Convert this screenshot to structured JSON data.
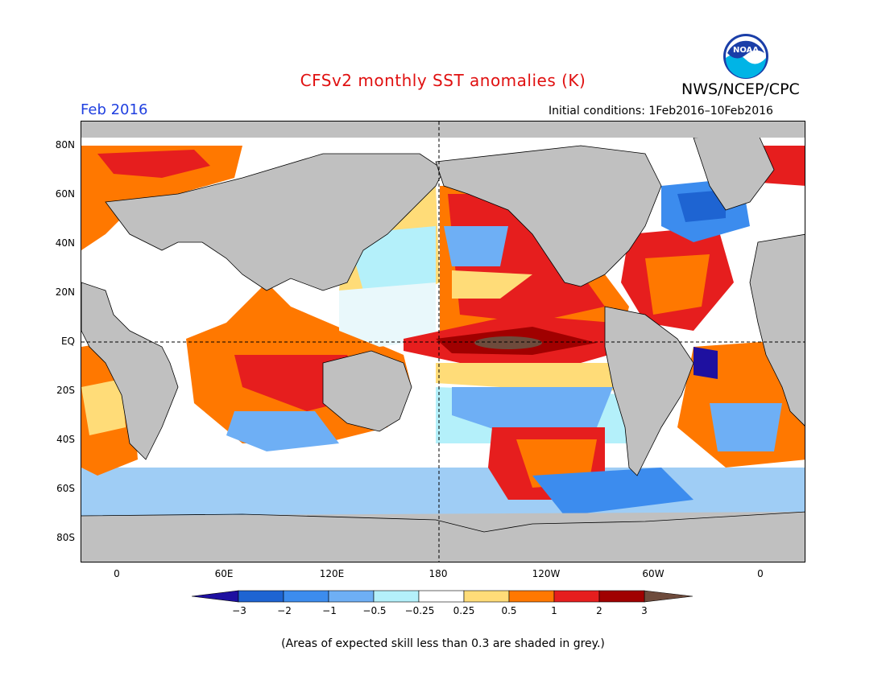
{
  "header": {
    "title": "CFSv2 monthly SST anomalies (K)",
    "organization": "NWS/NCEP/CPC",
    "period": "Feb 2016",
    "initial_conditions": "Initial conditions: 1Feb2016–10Feb2016",
    "logo_text": "NOAA"
  },
  "map": {
    "lat_labels": [
      "80N",
      "60N",
      "40N",
      "20N",
      "EQ",
      "20S",
      "40S",
      "60S",
      "80S"
    ],
    "lon_labels": [
      "0",
      "60E",
      "120E",
      "180",
      "120W",
      "60W",
      "0"
    ],
    "land_color": "#c0c0c0"
  },
  "colorbar": {
    "labels": [
      "−3",
      "−2",
      "−1",
      "−0.5",
      "−0.25",
      "0.25",
      "0.5",
      "1",
      "2",
      "3"
    ],
    "colors": [
      "#1e10a0",
      "#1e64d2",
      "#3c8cee",
      "#6eaff5",
      "#b4f0fa",
      "#ffffff",
      "#ffdc78",
      "#ff7800",
      "#e61e1e",
      "#a00000",
      "#6e4b3c"
    ]
  },
  "footer": {
    "skill_note": "(Areas of expected skill less than 0.3 are shaded in grey.)"
  }
}
